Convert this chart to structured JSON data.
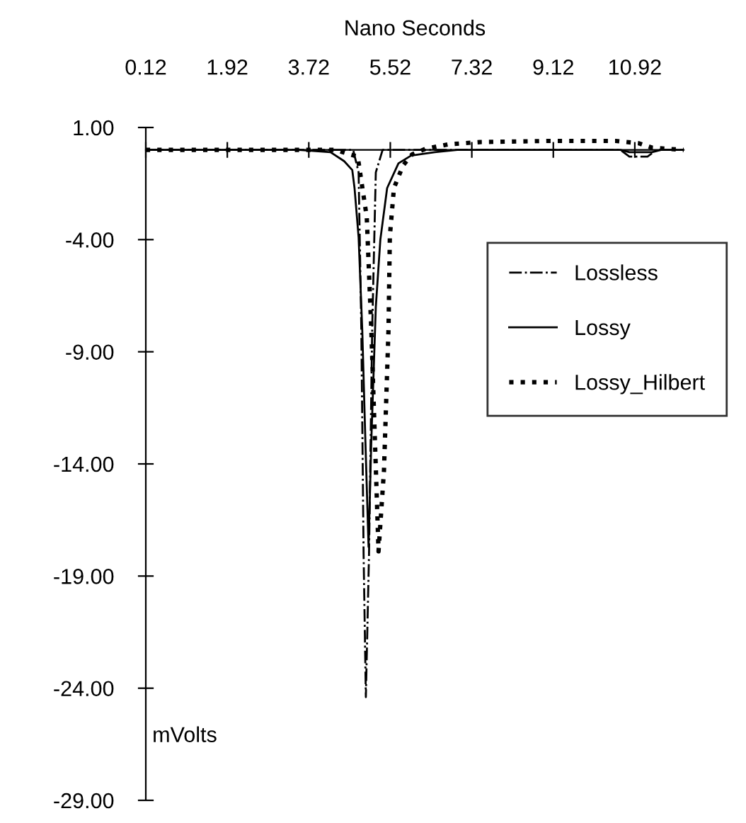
{
  "chart_data": {
    "type": "line",
    "xlabel": "Nano Seconds",
    "ylabel": "mVolts",
    "xlim": [
      0.12,
      12.0
    ],
    "xticks": [
      0.12,
      1.92,
      3.72,
      5.52,
      7.32,
      9.12,
      10.92
    ],
    "ylim": [
      -29,
      1
    ],
    "yticks": [
      {
        "value": 1,
        "label": "1.00"
      },
      {
        "value": -4,
        "label": "-4.00"
      },
      {
        "value": -9,
        "label": "-9.00"
      },
      {
        "value": -14,
        "label": "-14.00"
      },
      {
        "value": -19,
        "label": "-19.00"
      },
      {
        "value": -24,
        "label": "-24.00"
      },
      {
        "value": -29,
        "label": "-29.00"
      }
    ],
    "grid": false,
    "legend": "right",
    "marker": "none",
    "series": [
      {
        "name": "Lossless",
        "color": "#000000",
        "line_style": "dashdot",
        "x": [
          0.12,
          3.5,
          4.7,
          4.82,
          4.88,
          4.93,
          4.98,
          5.05,
          5.12,
          5.2,
          5.35,
          6.5,
          10.6,
          10.8,
          11.2,
          11.4,
          12.0
        ],
        "values": [
          0,
          0,
          0,
          -1,
          -8,
          -18,
          -24.4,
          -18,
          -8,
          -1,
          0,
          0,
          0,
          -0.3,
          -0.3,
          0,
          0
        ]
      },
      {
        "name": "Lossy",
        "color": "#000000",
        "line_style": "solid",
        "x": [
          0.12,
          3.5,
          4.2,
          4.5,
          4.68,
          4.73,
          4.82,
          4.9,
          4.97,
          5.04,
          5.1,
          5.2,
          5.3,
          5.45,
          5.7,
          5.98,
          6.5,
          7.0,
          10.6,
          10.8,
          11.3,
          11.5,
          12.0
        ],
        "values": [
          0,
          0,
          -0.1,
          -0.5,
          -0.9,
          -1.7,
          -3.9,
          -8,
          -13,
          -17.7,
          -13,
          -7,
          -4,
          -1.7,
          -0.6,
          -0.25,
          -0.1,
          0,
          0,
          -0.1,
          -0.1,
          0,
          0
        ]
      },
      {
        "name": "Lossy_Hilbert",
        "color": "#000000",
        "line_style": "dotted",
        "x": [
          0.12,
          4.3,
          4.8,
          5.0,
          5.1,
          5.17,
          5.26,
          5.38,
          5.48,
          5.51,
          5.6,
          5.8,
          6.0,
          6.3,
          6.8,
          7.5,
          9.0,
          10.5,
          11.0,
          11.3,
          12.0
        ],
        "values": [
          0,
          0,
          -0.3,
          -3,
          -8,
          -12.3,
          -17.9,
          -14.3,
          -8,
          -3.85,
          -1.7,
          -0.7,
          -0.2,
          0.05,
          0.25,
          0.35,
          0.4,
          0.4,
          0.3,
          0.1,
          0
        ]
      }
    ]
  }
}
